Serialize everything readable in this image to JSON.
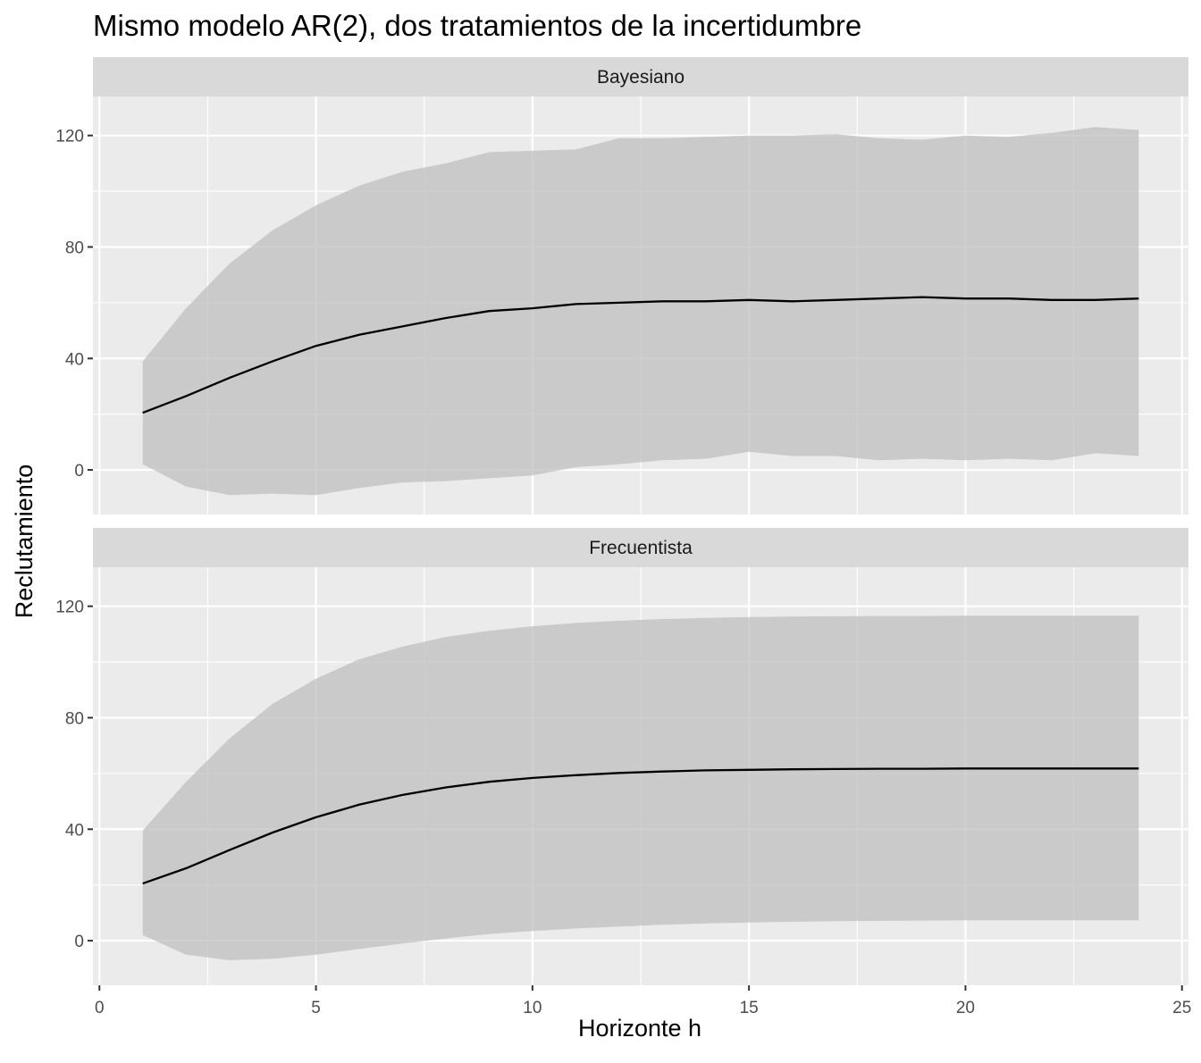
{
  "chart_data": {
    "type": "area",
    "title": "Mismo modelo AR(2), dos tratamientos de la incertidumbre",
    "xlabel": "Horizonte h",
    "ylabel": "Reclutamiento",
    "xlim": [
      -0.15,
      25.15
    ],
    "ylim": [
      -16,
      134
    ],
    "x_ticks": [
      0,
      5,
      10,
      15,
      20,
      25
    ],
    "x_tick_labels": [
      "0",
      "5",
      "10",
      "15",
      "20",
      "25"
    ],
    "y_ticks": [
      0,
      40,
      80,
      120
    ],
    "y_tick_labels": [
      "0",
      "40",
      "80",
      "120"
    ],
    "grid": true,
    "legend": "none",
    "colors": {
      "panel_background": "#ebebeb",
      "strip_background": "#d9d9d9",
      "ribbon": "#bfbfbf",
      "line": "#000000"
    },
    "x": [
      1,
      2,
      3,
      4,
      5,
      6,
      7,
      8,
      9,
      10,
      11,
      12,
      13,
      14,
      15,
      16,
      17,
      18,
      19,
      20,
      21,
      22,
      23,
      24
    ],
    "panels": [
      {
        "label": "Bayesiano",
        "mean": [
          20.5,
          26.5,
          33,
          39,
          44.5,
          48.5,
          51.5,
          54.5,
          57,
          58,
          59.5,
          60,
          60.5,
          60.5,
          61,
          60.5,
          61,
          61.5,
          62,
          61.5,
          61.5,
          61,
          61,
          61.5
        ],
        "lower": [
          2,
          -6,
          -9,
          -8.5,
          -9,
          -6.5,
          -4.5,
          -4,
          -3,
          -2,
          1,
          2,
          3.5,
          4,
          6.5,
          5,
          5,
          3.5,
          4,
          3.5,
          4,
          3.5,
          6,
          5
        ],
        "upper": [
          39,
          58,
          74,
          86,
          95,
          102,
          107,
          110,
          114,
          114.5,
          115,
          119,
          119,
          119.5,
          120,
          120,
          120.5,
          119,
          118.5,
          120,
          119.5,
          121,
          123,
          122
        ]
      },
      {
        "label": "Frecuentista",
        "mean": [
          20.5,
          26,
          32.5,
          38.8,
          44.3,
          48.8,
          52.3,
          55,
          57,
          58.4,
          59.4,
          60.2,
          60.7,
          61.1,
          61.3,
          61.5,
          61.6,
          61.7,
          61.7,
          61.8,
          61.8,
          61.8,
          61.8,
          61.8
        ],
        "lower": [
          2,
          -5,
          -7,
          -6.5,
          -5,
          -3,
          -1,
          0.8,
          2.4,
          3.5,
          4.4,
          5.1,
          5.7,
          6.2,
          6.5,
          6.8,
          7,
          7.1,
          7.2,
          7.3,
          7.3,
          7.3,
          7.3,
          7.3
        ],
        "upper": [
          39.5,
          57,
          72.5,
          85,
          94,
          101,
          105.5,
          109,
          111.2,
          112.8,
          114,
          114.8,
          115.4,
          115.8,
          116.1,
          116.3,
          116.4,
          116.5,
          116.5,
          116.6,
          116.6,
          116.6,
          116.6,
          116.6
        ]
      }
    ]
  }
}
